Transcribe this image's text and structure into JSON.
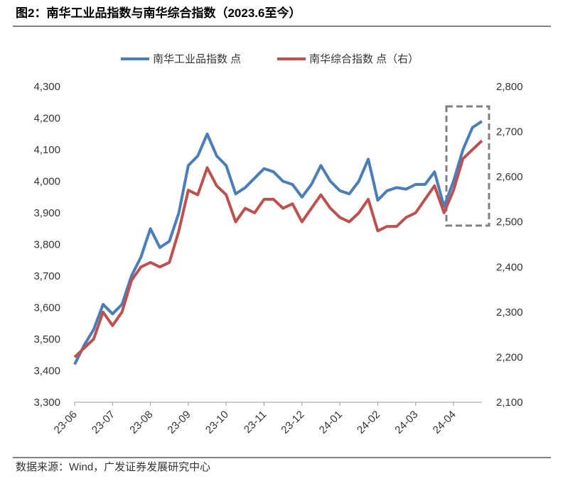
{
  "chart_data": {
    "type": "line",
    "title": "图2：南华工业品指数与南华综合指数（2023.6至今）",
    "source": "数据来源：Wind，广发证券发展研究中心",
    "categories": [
      "23-06",
      null,
      null,
      null,
      "23-07",
      null,
      null,
      null,
      "23-08",
      null,
      null,
      null,
      "23-09",
      null,
      null,
      null,
      "23-10",
      null,
      null,
      null,
      "23-11",
      null,
      null,
      null,
      "23-12",
      null,
      null,
      null,
      "24-01",
      null,
      null,
      null,
      "24-02",
      null,
      null,
      null,
      "24-03",
      null,
      null,
      null,
      "24-04",
      null,
      null,
      null
    ],
    "series": [
      {
        "name": "南华工业品指数 点",
        "color": "#4a7ebb",
        "axis": "y",
        "values": [
          3420,
          3480,
          3530,
          3610,
          3580,
          3610,
          3700,
          3760,
          3850,
          3790,
          3810,
          3900,
          4050,
          4080,
          4150,
          4080,
          4050,
          3960,
          3980,
          4010,
          4040,
          4030,
          4000,
          3990,
          3950,
          3990,
          4050,
          4000,
          3970,
          3960,
          4000,
          4070,
          3940,
          3970,
          3980,
          3975,
          3990,
          3990,
          4030,
          3920,
          4000,
          4100,
          4170,
          4190
        ]
      },
      {
        "name": "南华综合指数 点（右）",
        "color": "#c0504d",
        "axis": "y2",
        "values": [
          2200,
          2220,
          2240,
          2300,
          2270,
          2300,
          2370,
          2400,
          2410,
          2400,
          2410,
          2480,
          2570,
          2560,
          2620,
          2580,
          2560,
          2500,
          2530,
          2520,
          2550,
          2550,
          2530,
          2540,
          2500,
          2530,
          2560,
          2530,
          2510,
          2500,
          2520,
          2550,
          2480,
          2490,
          2490,
          2510,
          2520,
          2550,
          2580,
          2520,
          2570,
          2640,
          2660,
          2680
        ]
      }
    ],
    "ylim": [
      3300,
      4300
    ],
    "yticks": [
      {
        "value": 3300,
        "label": "3,300"
      },
      {
        "value": 3400,
        "label": "3,400"
      },
      {
        "value": 3500,
        "label": "3,500"
      },
      {
        "value": 3600,
        "label": "3,600"
      },
      {
        "value": 3700,
        "label": "3,700"
      },
      {
        "value": 3800,
        "label": "3,800"
      },
      {
        "value": 3900,
        "label": "3,900"
      },
      {
        "value": 4000,
        "label": "4,000"
      },
      {
        "value": 4100,
        "label": "4,100"
      },
      {
        "value": 4200,
        "label": "4,200"
      },
      {
        "value": 4300,
        "label": "4,300"
      }
    ],
    "y2lim": [
      2100,
      2800
    ],
    "y2ticks": [
      {
        "value": 2100,
        "label": "2,100"
      },
      {
        "value": 2200,
        "label": "2,200"
      },
      {
        "value": 2300,
        "label": "2,300"
      },
      {
        "value": 2400,
        "label": "2,400"
      },
      {
        "value": 2500,
        "label": "2,500"
      },
      {
        "value": 2600,
        "label": "2,600"
      },
      {
        "value": 2700,
        "label": "2,700"
      },
      {
        "value": 2800,
        "label": "2,800"
      }
    ],
    "legend": "top"
  }
}
